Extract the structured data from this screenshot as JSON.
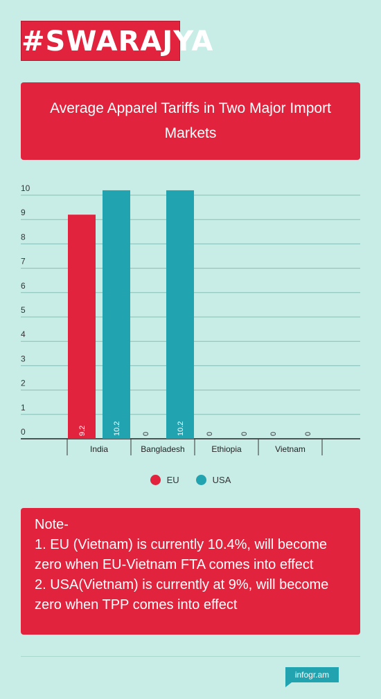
{
  "logo": {
    "text": "#SWARAJYA"
  },
  "chart_data": {
    "type": "bar",
    "title": "Average Apparel Tariffs in Two Major Import Markets",
    "categories": [
      "India",
      "Bangladesh",
      "Ethiopia",
      "Vietnam"
    ],
    "series": [
      {
        "name": "EU",
        "color": "#e2233e",
        "values": [
          9.2,
          0,
          0,
          0
        ]
      },
      {
        "name": "USA",
        "color": "#21a3b0",
        "values": [
          10.2,
          10.2,
          0,
          0
        ]
      }
    ],
    "yticks": [
      0,
      1,
      2,
      3,
      4,
      5,
      6,
      7,
      8,
      9,
      10
    ],
    "ylim": [
      0,
      10
    ],
    "grid": true,
    "legend_position": "bottom"
  },
  "note": {
    "lines": [
      "Note-",
      "1. EU (Vietnam) is currently 10.4%, will become zero when EU-Vietnam FTA comes into effect",
      "2.  USA(Vietnam) is currently at 9%, will become zero when TPP comes into effect"
    ]
  },
  "footer": {
    "brand": "infogr.am"
  }
}
